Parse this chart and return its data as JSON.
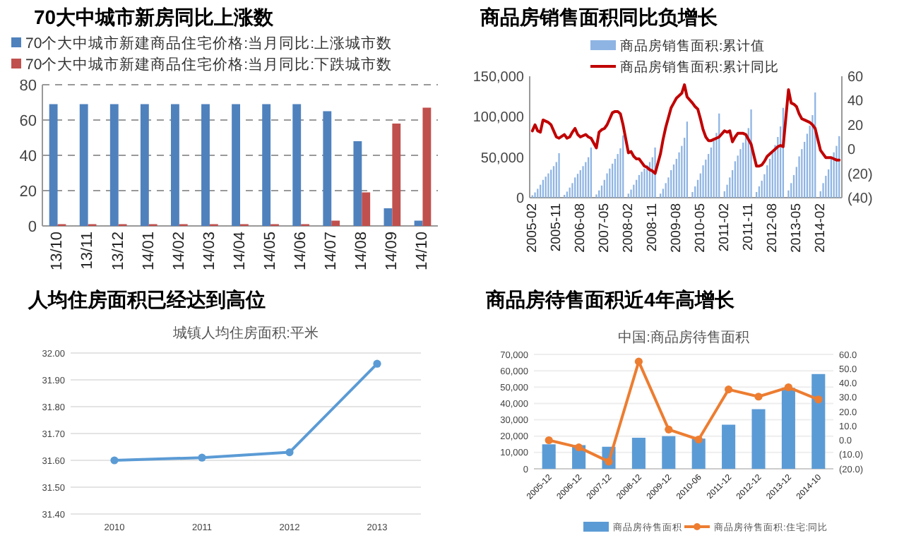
{
  "chart_data": [
    {
      "type": "bar",
      "title": "70大中城市新房同比上涨数",
      "categories": [
        "13/10",
        "13/11",
        "13/12",
        "14/01",
        "14/02",
        "14/03",
        "14/04",
        "14/05",
        "14/06",
        "14/07",
        "14/08",
        "14/09",
        "14/10"
      ],
      "series": [
        {
          "name": "70个大中城市新建商品住宅价格:当月同比:上涨城市数",
          "color": "#4f81bd",
          "values": [
            69,
            69,
            69,
            69,
            69,
            69,
            69,
            69,
            69,
            65,
            48,
            10,
            3
          ]
        },
        {
          "name": "70个大中城市新建商品住宅价格:当月同比:下跌城市数",
          "color": "#c0504d",
          "values": [
            1,
            1,
            1,
            1,
            1,
            1,
            1,
            1,
            1,
            3,
            19,
            58,
            67
          ]
        }
      ],
      "ylim": [
        0,
        80
      ],
      "yticks": [
        0,
        20,
        40,
        60,
        80
      ],
      "grid": "y",
      "legend": "top"
    },
    {
      "type": "bar",
      "title": "商品房销售面积同比负增长",
      "x": [
        "2005-02",
        "2005-03",
        "2005-04",
        "2005-05",
        "2005-06",
        "2005-07",
        "2005-08",
        "2005-09",
        "2005-10",
        "2005-11",
        "2005-12",
        "2006-02",
        "2006-03",
        "2006-04",
        "2006-05",
        "2006-06",
        "2006-07",
        "2006-08",
        "2006-09",
        "2006-10",
        "2006-11",
        "2006-12",
        "2007-02",
        "2007-03",
        "2007-04",
        "2007-05",
        "2007-06",
        "2007-07",
        "2007-08",
        "2007-09",
        "2007-10",
        "2007-11",
        "2007-12",
        "2008-02",
        "2008-03",
        "2008-04",
        "2008-05",
        "2008-06",
        "2008-07",
        "2008-08",
        "2008-09",
        "2008-10",
        "2008-11",
        "2008-12",
        "2009-02",
        "2009-03",
        "2009-04",
        "2009-05",
        "2009-06",
        "2009-07",
        "2009-08",
        "2009-09",
        "2009-10",
        "2009-11",
        "2009-12",
        "2010-02",
        "2010-03",
        "2010-04",
        "2010-05",
        "2010-06",
        "2010-07",
        "2010-08",
        "2010-09",
        "2010-10",
        "2010-11",
        "2010-12",
        "2011-02",
        "2011-03",
        "2011-04",
        "2011-05",
        "2011-06",
        "2011-07",
        "2011-08",
        "2011-09",
        "2011-10",
        "2011-11",
        "2011-12",
        "2012-02",
        "2012-03",
        "2012-04",
        "2012-05",
        "2012-06",
        "2012-07",
        "2012-08",
        "2012-09",
        "2012-10",
        "2012-11",
        "2012-12",
        "2013-02",
        "2013-03",
        "2013-04",
        "2013-05",
        "2013-06",
        "2013-07",
        "2013-08",
        "2013-09",
        "2013-10",
        "2013-11",
        "2013-12",
        "2014-02",
        "2014-03",
        "2014-04",
        "2014-05",
        "2014-06",
        "2014-07",
        "2014-08",
        "2014-09"
      ],
      "series": [
        {
          "name": "商品房销售面积:累计值",
          "color": "#8eb4e3",
          "values": [
            3000,
            6500,
            11000,
            16000,
            22000,
            26000,
            30000,
            34500,
            39000,
            44000,
            55000,
            3500,
            7500,
            12500,
            18000,
            25000,
            29500,
            34000,
            39000,
            44000,
            50000,
            62000,
            4000,
            9000,
            15000,
            22000,
            30000,
            36000,
            42000,
            48000,
            54000,
            61000,
            77000,
            5000,
            10000,
            16000,
            22000,
            28000,
            32000,
            36000,
            40000,
            44000,
            50000,
            62000,
            5000,
            11000,
            18000,
            25000,
            34000,
            41000,
            48000,
            56000,
            64000,
            74000,
            94000,
            7000,
            14000,
            22000,
            30000,
            40000,
            47000,
            54000,
            62000,
            70000,
            80000,
            104000,
            8000,
            16000,
            25000,
            34000,
            45000,
            52000,
            60000,
            68000,
            76000,
            86000,
            109000,
            7000,
            14000,
            21000,
            29000,
            40000,
            48000,
            56000,
            65000,
            75000,
            88000,
            111000,
            9000,
            18000,
            28000,
            38000,
            51000,
            60000,
            69000,
            79000,
            89000,
            102000,
            130000,
            8000,
            18000,
            27000,
            35000,
            48000,
            56000,
            64000,
            76000
          ]
        },
        {
          "name": "商品房销售面积:累计同比",
          "type": "line",
          "axis": "y2",
          "color": "#c00000",
          "values": [
            15,
            20,
            15,
            14,
            24,
            23,
            22,
            20,
            15,
            10,
            9,
            12,
            9,
            10,
            14,
            17,
            12,
            10,
            11,
            12,
            10,
            9,
            1,
            14,
            16,
            17,
            20,
            25,
            30,
            31,
            31,
            29,
            20,
            -3,
            -2,
            -6,
            -8,
            -8,
            -11,
            -14,
            -15,
            -17,
            -18,
            -20,
            -4,
            8,
            18,
            26,
            34,
            38,
            42,
            44,
            46,
            53,
            43,
            38,
            35,
            33,
            25,
            16,
            10,
            7,
            7,
            8,
            9,
            10,
            15,
            14,
            15,
            6,
            10,
            13,
            13,
            13,
            12,
            8,
            4,
            -14,
            -14,
            -13,
            -10,
            -6,
            -4,
            -2,
            0,
            2,
            3,
            2,
            49,
            38,
            37,
            35,
            29,
            25,
            24,
            23,
            22,
            20,
            17,
            -1,
            -4,
            -7,
            -7,
            -7,
            -8,
            -9,
            -9
          ]
        }
      ],
      "xlim": [
        "2005-01",
        "2014-10"
      ],
      "xticks": [
        "2005-02",
        "2005-11",
        "2006-08",
        "2007-05",
        "2008-02",
        "2008-11",
        "2009-08",
        "2010-05",
        "2011-02",
        "2011-11",
        "2012-08",
        "2013-05",
        "2014-02"
      ],
      "ylim": [
        0,
        150000
      ],
      "yticks": [
        0,
        {
          "value": 50000,
          "label": "50,000"
        },
        {
          "value": 100000,
          "label": "100,000"
        },
        {
          "value": 150000,
          "label": "150,000"
        }
      ],
      "y2lim": [
        -40,
        60
      ],
      "y2ticks": [
        {
          "value": -40,
          "label": "(40)"
        },
        {
          "value": -20,
          "label": "(20)"
        },
        0,
        20,
        40,
        60
      ],
      "legend": "top"
    },
    {
      "type": "line",
      "title": "人均住房面积已经达到高位",
      "subtitle": "城镇人均住房面积:平米",
      "categories": [
        "2010",
        "2011",
        "2012",
        "2013"
      ],
      "series": [
        {
          "color": "#5b9bd5",
          "values": [
            31.6,
            31.61,
            31.63,
            31.96
          ]
        }
      ],
      "ylim": [
        31.4,
        32.0
      ],
      "yticks": [
        {
          "value": 31.4,
          "label": "31.40"
        },
        {
          "value": 31.5,
          "label": "31.50"
        },
        {
          "value": 31.6,
          "label": "31.60"
        },
        {
          "value": 31.7,
          "label": "31.70"
        },
        {
          "value": 31.8,
          "label": "31.80"
        },
        {
          "value": 31.9,
          "label": "31.90"
        },
        {
          "value": 32.0,
          "label": "32.00"
        }
      ],
      "grid": "y",
      "marker": "circle"
    },
    {
      "type": "bar",
      "title": "商品房待售面积近4年高增长",
      "subtitle": "中国:商品房待售面积",
      "categories": [
        "2005-12",
        "2006-12",
        "2007-12",
        "2008-12",
        "2009-12",
        "2010-06",
        "2011-12",
        "2012-12",
        "2013-12",
        "2014-10"
      ],
      "series": [
        {
          "name": "商品房待售面积",
          "color": "#5b9bd5",
          "values": [
            15000,
            14500,
            13500,
            19000,
            20000,
            18500,
            27000,
            36500,
            49500,
            58000
          ]
        },
        {
          "name": "商品房待售面积:住宅:同比",
          "type": "line",
          "axis": "y2",
          "color": "#ed7d31",
          "values": [
            0.0,
            -5,
            -15,
            55,
            7.5,
            0.5,
            35.5,
            30.5,
            37,
            28.5
          ]
        }
      ],
      "ylim": [
        0,
        70000
      ],
      "yticks": [
        0,
        {
          "value": 10000,
          "label": "10,000"
        },
        {
          "value": 20000,
          "label": "20,000"
        },
        {
          "value": 30000,
          "label": "30,000"
        },
        {
          "value": 40000,
          "label": "40,000"
        },
        {
          "value": 50000,
          "label": "50,000"
        },
        {
          "value": 60000,
          "label": "60,000"
        },
        {
          "value": 70000,
          "label": "70,000"
        }
      ],
      "y2lim": [
        -20,
        60
      ],
      "y2ticks": [
        {
          "value": -20,
          "label": "(20.0)"
        },
        {
          "value": -10,
          "label": "(10.0)"
        },
        {
          "value": 0,
          "label": "0.0"
        },
        {
          "value": 10,
          "label": "10.0"
        },
        {
          "value": 20,
          "label": "20.0"
        },
        {
          "value": 30,
          "label": "30.0"
        },
        {
          "value": 40,
          "label": "40.0"
        },
        {
          "value": 50,
          "label": "50.0"
        },
        {
          "value": 60,
          "label": "60.0"
        }
      ],
      "grid": "y",
      "marker": "circle",
      "legend": "bottom"
    }
  ]
}
